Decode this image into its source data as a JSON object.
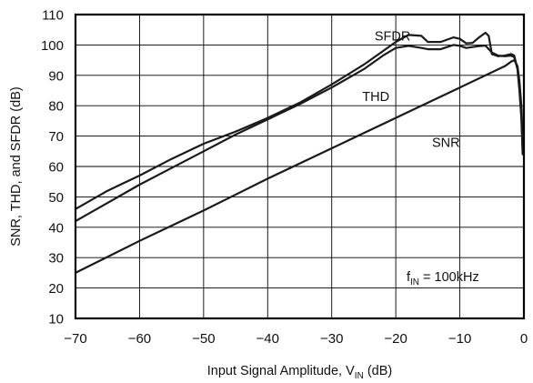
{
  "chart_data": {
    "type": "line",
    "title": "",
    "xlabel": "Input Signal Amplitude, V",
    "xlabel_sub": "IN",
    "xlabel_unit": " (dB)",
    "ylabel": "SNR, THD, and SFDR  (dB)",
    "xlim": [
      -70,
      0
    ],
    "ylim": [
      10,
      110
    ],
    "xticks": [
      -70,
      -60,
      -50,
      -40,
      -30,
      -20,
      -10,
      0
    ],
    "xtick_labels": [
      "−70",
      "−60",
      "−50",
      "−40",
      "−30",
      "−20",
      "−10",
      "0"
    ],
    "yticks": [
      10,
      20,
      30,
      40,
      50,
      60,
      70,
      80,
      90,
      100,
      110
    ],
    "grid": true,
    "annotation": {
      "prefix": "f",
      "sub": "IN",
      "suffix": " = 100kHz"
    },
    "series": [
      {
        "name": "SFDR",
        "label_x": -17.7,
        "label_y": 103,
        "x": [
          -70,
          -65,
          -60,
          -55,
          -50,
          -45,
          -40,
          -35,
          -30,
          -25,
          -22,
          -20,
          -18,
          -16,
          -15,
          -13,
          -11,
          -10,
          -9,
          -8,
          -7,
          -6,
          -5.5,
          -5,
          -4,
          -3,
          -2,
          -1.5,
          -1,
          -0.7,
          -0.4,
          -0.2
        ],
        "y": [
          46,
          52,
          57,
          62.5,
          67.5,
          71.5,
          76,
          81,
          87,
          93.5,
          98,
          101,
          103.3,
          103,
          101,
          101,
          102.5,
          102,
          100.5,
          100.7,
          102.5,
          104,
          103,
          97,
          96.3,
          96.5,
          97,
          96.5,
          92,
          86,
          77,
          66
        ]
      },
      {
        "name": "THD",
        "label_x": -21,
        "label_y": 83,
        "x": [
          -70,
          -65,
          -60,
          -55,
          -50,
          -45,
          -40,
          -35,
          -30,
          -25,
          -22,
          -20,
          -18,
          -16,
          -15,
          -13,
          -11,
          -10,
          -9,
          -8,
          -7,
          -6,
          -5,
          -4,
          -3,
          -2,
          -1.5,
          -1,
          -0.7,
          -0.4,
          -0.2
        ],
        "y": [
          42,
          48,
          54,
          59.5,
          65,
          70.5,
          75.5,
          80.5,
          86,
          92,
          96.5,
          99,
          99.7,
          99,
          98.6,
          98.6,
          100,
          99.7,
          99,
          99.3,
          99.6,
          99.8,
          97.5,
          96.5,
          96.3,
          96.5,
          96,
          92,
          85,
          76,
          64
        ]
      },
      {
        "name": "SNR",
        "label_x": -10,
        "label_y": 68,
        "x": [
          -70,
          -60,
          -50,
          -40,
          -30,
          -20,
          -10,
          -3,
          -2,
          -1.5,
          -1,
          -0.7,
          -0.4,
          -0.2
        ],
        "y": [
          25,
          35.5,
          45.5,
          56,
          66,
          76,
          86,
          93,
          94.5,
          95,
          93,
          88,
          80,
          69
        ]
      }
    ]
  }
}
